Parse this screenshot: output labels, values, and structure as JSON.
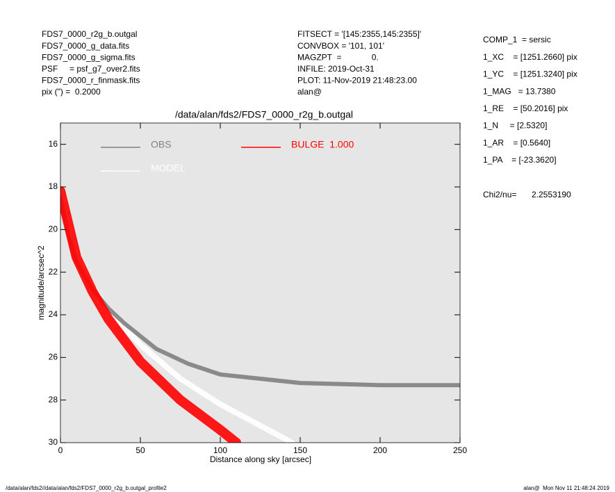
{
  "header_left": [
    "FDS7_0000_r2g_b.outgal",
    "FDS7_0000_g_data.fits",
    "FDS7_0000_g_sigma.fits",
    "PSF     = psf_g7_over2.fits",
    "FDS7_0000_r_finmask.fits",
    "pix (\") =  0.2000"
  ],
  "header_mid": [
    "FITSECT = '[145:2355,145:2355]'",
    "CONVBOX = '101, 101'",
    "MAGZPT  =             0.",
    "INFILE: 2019-Oct-31",
    "PLOT: 11-Nov-2019 21:48:23.00",
    "alan@"
  ],
  "params": [
    "COMP_1  = sersic",
    "1_XC    = [1251.2660] pix",
    "1_YC    = [1251.3240] pix",
    "1_MAG   = 13.7380",
    "1_RE    = [50.2016] pix",
    "1_N     = [2.5320]",
    "1_AR    = [0.5640]",
    "1_PA    = [-23.3620]"
  ],
  "chi2": {
    "label": "Chi2/nu=",
    "value": "2.2553190"
  },
  "footer_left": "/data/alan/fds2//data/alan/fds2/FDS7_0000_r2g_b.outgal_profile2",
  "footer_right": "alan@  Mon Nov 11 21:48:24 2019",
  "chart_data": {
    "type": "line",
    "title": "/data/alan/fds2/FDS7_0000_r2g_b.outgal",
    "xlabel": "Distance along sky [arcsec]",
    "ylabel": "magnitude/arcsec^2",
    "xlim": [
      0,
      250
    ],
    "ylim": [
      30,
      15
    ],
    "xticks": [
      0,
      50,
      100,
      150,
      200,
      250
    ],
    "yticks": [
      16,
      18,
      20,
      22,
      24,
      26,
      28,
      30
    ],
    "background": "#e6e6e6",
    "series": [
      {
        "name": "OBS",
        "color": "#808080",
        "width": 6,
        "x": [
          0,
          5,
          10,
          20,
          30,
          40,
          50,
          60,
          80,
          100,
          150,
          200,
          250
        ],
        "y": [
          18.5,
          20.3,
          21.5,
          22.8,
          23.7,
          24.4,
          25.0,
          25.6,
          26.3,
          26.8,
          27.2,
          27.3,
          27.3
        ]
      },
      {
        "name": "MODEL",
        "color": "#ffffff",
        "width": 8,
        "x": [
          0,
          10,
          20,
          30,
          50,
          75,
          100,
          125,
          145
        ],
        "y": [
          18.2,
          21.2,
          22.7,
          23.8,
          25.4,
          27.0,
          28.2,
          29.2,
          30.0
        ]
      },
      {
        "name": "BULGE  1.000",
        "color": "#ff0000",
        "width": 14,
        "x": [
          0,
          10,
          20,
          30,
          50,
          75,
          100,
          110
        ],
        "y": [
          18.2,
          21.3,
          22.9,
          24.2,
          26.2,
          28.0,
          29.4,
          30.0
        ]
      }
    ]
  }
}
